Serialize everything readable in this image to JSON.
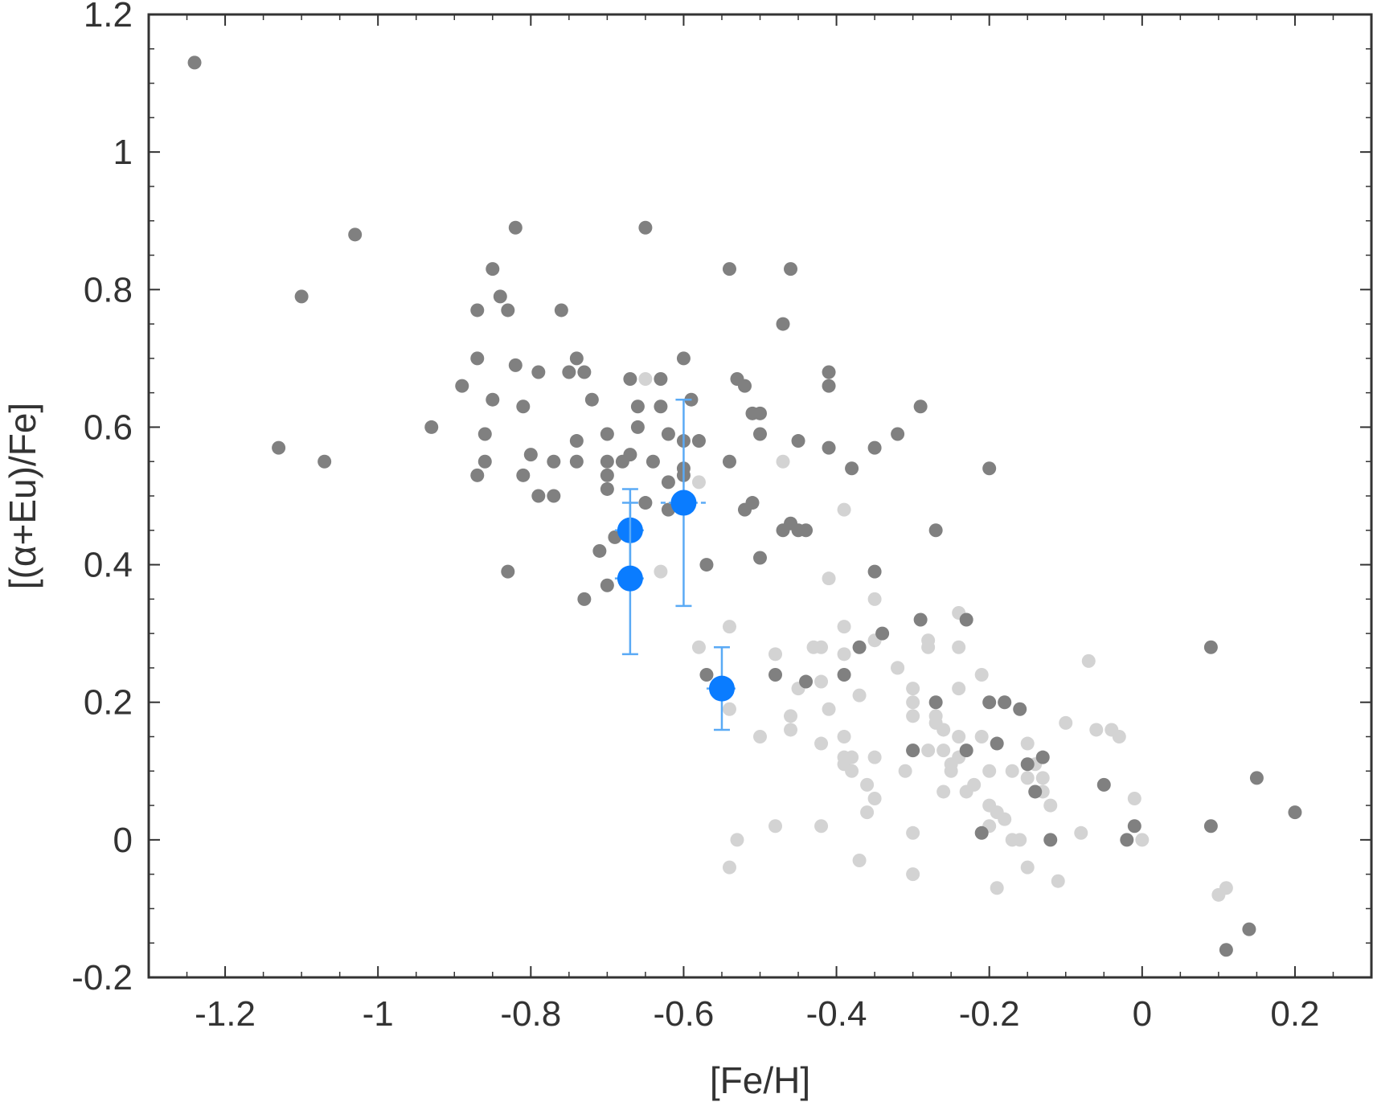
{
  "chart_data": {
    "type": "scatter",
    "title": "",
    "xlabel": "[Fe/H]",
    "ylabel": "[(α+Eu)/Fe]",
    "xlim": [
      -1.3,
      0.3
    ],
    "ylim": [
      -0.2,
      1.2
    ],
    "xticks": [
      -1.2,
      -1,
      -0.8,
      -0.6,
      -0.4,
      -0.2,
      0,
      0.2
    ],
    "xtick_labels": [
      "-1.2",
      "-1",
      "-0.8",
      "-0.6",
      "-0.4",
      "-0.2",
      "0",
      "0.2"
    ],
    "yticks": [
      -0.2,
      0,
      0.2,
      0.4,
      0.6,
      0.8,
      1,
      1.2
    ],
    "ytick_labels": [
      "-0.2",
      "0",
      "0.2",
      "0.4",
      "0.6",
      "0.8",
      "1",
      "1.2"
    ],
    "grid": false,
    "legend": "none",
    "colors": {
      "dark_points": "#808080",
      "light_points": "#d3d3d3",
      "highlight": "#0a7cff",
      "errorbar": "#5aaaf5",
      "axes": "#333333"
    },
    "series": [
      {
        "color_key": "light_points",
        "points": [
          [
            -0.65,
            0.67
          ],
          [
            -0.58,
            0.52
          ],
          [
            -0.47,
            0.55
          ],
          [
            -0.39,
            0.48
          ],
          [
            -0.41,
            0.38
          ],
          [
            -0.35,
            0.35
          ],
          [
            -0.63,
            0.39
          ],
          [
            -0.58,
            0.28
          ],
          [
            -0.54,
            0.31
          ],
          [
            -0.54,
            0.19
          ],
          [
            -0.5,
            0.15
          ],
          [
            -0.48,
            0.27
          ],
          [
            -0.46,
            0.18
          ],
          [
            -0.46,
            0.16
          ],
          [
            -0.45,
            0.22
          ],
          [
            -0.43,
            0.28
          ],
          [
            -0.42,
            0.28
          ],
          [
            -0.42,
            0.23
          ],
          [
            -0.42,
            0.14
          ],
          [
            -0.41,
            0.19
          ],
          [
            -0.39,
            0.31
          ],
          [
            -0.39,
            0.27
          ],
          [
            -0.39,
            0.15
          ],
          [
            -0.39,
            0.12
          ],
          [
            -0.39,
            0.11
          ],
          [
            -0.38,
            0.12
          ],
          [
            -0.38,
            0.1
          ],
          [
            -0.37,
            0.21
          ],
          [
            -0.36,
            0.08
          ],
          [
            -0.36,
            0.04
          ],
          [
            -0.35,
            0.29
          ],
          [
            -0.35,
            0.12
          ],
          [
            -0.35,
            0.06
          ],
          [
            -0.32,
            0.25
          ],
          [
            -0.31,
            0.1
          ],
          [
            -0.3,
            0.22
          ],
          [
            -0.3,
            0.2
          ],
          [
            -0.3,
            0.18
          ],
          [
            -0.3,
            0.13
          ],
          [
            -0.3,
            0.01
          ],
          [
            -0.28,
            0.28
          ],
          [
            -0.28,
            0.29
          ],
          [
            -0.27,
            0.18
          ],
          [
            -0.27,
            0.17
          ],
          [
            -0.26,
            0.16
          ],
          [
            -0.26,
            0.13
          ],
          [
            -0.26,
            0.07
          ],
          [
            -0.25,
            0.11
          ],
          [
            -0.25,
            0.1
          ],
          [
            -0.24,
            0.33
          ],
          [
            -0.24,
            0.28
          ],
          [
            -0.24,
            0.22
          ],
          [
            -0.24,
            0.15
          ],
          [
            -0.24,
            0.12
          ],
          [
            -0.23,
            0.07
          ],
          [
            -0.22,
            0.08
          ],
          [
            -0.21,
            0.24
          ],
          [
            -0.21,
            0.15
          ],
          [
            -0.2,
            0.1
          ],
          [
            -0.2,
            0.05
          ],
          [
            -0.2,
            0.02
          ],
          [
            -0.19,
            0.04
          ],
          [
            -0.18,
            0.03
          ],
          [
            -0.18,
            0.2
          ],
          [
            -0.17,
            0.1
          ],
          [
            -0.17,
            0.0
          ],
          [
            -0.16,
            0.0
          ],
          [
            -0.15,
            0.14
          ],
          [
            -0.15,
            0.09
          ],
          [
            -0.14,
            0.11
          ],
          [
            -0.13,
            0.09
          ],
          [
            -0.13,
            0.07
          ],
          [
            -0.12,
            0.05
          ],
          [
            -0.1,
            0.17
          ],
          [
            -0.08,
            0.01
          ],
          [
            -0.07,
            0.26
          ],
          [
            -0.06,
            0.16
          ],
          [
            -0.04,
            0.16
          ],
          [
            -0.03,
            0.15
          ],
          [
            -0.01,
            0.06
          ],
          [
            0,
            0.0
          ],
          [
            0.1,
            -0.08
          ],
          [
            0.11,
            -0.07
          ],
          [
            -0.54,
            -0.04
          ],
          [
            -0.53,
            0.0
          ],
          [
            -0.48,
            0.02
          ],
          [
            -0.42,
            0.02
          ],
          [
            -0.37,
            -0.03
          ],
          [
            -0.3,
            -0.05
          ],
          [
            -0.19,
            -0.07
          ],
          [
            -0.15,
            -0.04
          ],
          [
            -0.11,
            -0.06
          ],
          [
            -0.32,
            0.25
          ],
          [
            -0.28,
            0.13
          ]
        ]
      },
      {
        "color_key": "dark_points",
        "points": [
          [
            -1.24,
            1.13
          ],
          [
            -1.13,
            0.57
          ],
          [
            -1.1,
            0.79
          ],
          [
            -1.07,
            0.55
          ],
          [
            -1.03,
            0.88
          ],
          [
            -0.93,
            0.6
          ],
          [
            -0.89,
            0.66
          ],
          [
            -0.87,
            0.77
          ],
          [
            -0.87,
            0.7
          ],
          [
            -0.87,
            0.53
          ],
          [
            -0.86,
            0.59
          ],
          [
            -0.86,
            0.55
          ],
          [
            -0.85,
            0.83
          ],
          [
            -0.85,
            0.64
          ],
          [
            -0.84,
            0.79
          ],
          [
            -0.83,
            0.77
          ],
          [
            -0.83,
            0.39
          ],
          [
            -0.82,
            0.89
          ],
          [
            -0.82,
            0.69
          ],
          [
            -0.81,
            0.63
          ],
          [
            -0.81,
            0.53
          ],
          [
            -0.8,
            0.56
          ],
          [
            -0.79,
            0.68
          ],
          [
            -0.79,
            0.5
          ],
          [
            -0.77,
            0.55
          ],
          [
            -0.77,
            0.5
          ],
          [
            -0.76,
            0.77
          ],
          [
            -0.75,
            0.68
          ],
          [
            -0.74,
            0.7
          ],
          [
            -0.74,
            0.58
          ],
          [
            -0.74,
            0.55
          ],
          [
            -0.73,
            0.68
          ],
          [
            -0.73,
            0.35
          ],
          [
            -0.72,
            0.64
          ],
          [
            -0.71,
            0.42
          ],
          [
            -0.7,
            0.59
          ],
          [
            -0.7,
            0.55
          ],
          [
            -0.7,
            0.53
          ],
          [
            -0.7,
            0.51
          ],
          [
            -0.7,
            0.37
          ],
          [
            -0.69,
            0.44
          ],
          [
            -0.68,
            0.55
          ],
          [
            -0.67,
            0.67
          ],
          [
            -0.67,
            0.56
          ],
          [
            -0.66,
            0.63
          ],
          [
            -0.66,
            0.6
          ],
          [
            -0.65,
            0.89
          ],
          [
            -0.65,
            0.49
          ],
          [
            -0.64,
            0.55
          ],
          [
            -0.63,
            0.67
          ],
          [
            -0.63,
            0.63
          ],
          [
            -0.62,
            0.59
          ],
          [
            -0.62,
            0.52
          ],
          [
            -0.62,
            0.48
          ],
          [
            -0.6,
            0.7
          ],
          [
            -0.6,
            0.58
          ],
          [
            -0.6,
            0.54
          ],
          [
            -0.6,
            0.53
          ],
          [
            -0.59,
            0.64
          ],
          [
            -0.58,
            0.58
          ],
          [
            -0.57,
            0.4
          ],
          [
            -0.54,
            0.83
          ],
          [
            -0.54,
            0.55
          ],
          [
            -0.53,
            0.67
          ],
          [
            -0.52,
            0.48
          ],
          [
            -0.52,
            0.66
          ],
          [
            -0.51,
            0.62
          ],
          [
            -0.51,
            0.49
          ],
          [
            -0.5,
            0.62
          ],
          [
            -0.5,
            0.59
          ],
          [
            -0.5,
            0.41
          ],
          [
            -0.47,
            0.75
          ],
          [
            -0.47,
            0.45
          ],
          [
            -0.46,
            0.83
          ],
          [
            -0.46,
            0.46
          ],
          [
            -0.45,
            0.58
          ],
          [
            -0.45,
            0.45
          ],
          [
            -0.44,
            0.45
          ],
          [
            -0.41,
            0.68
          ],
          [
            -0.41,
            0.66
          ],
          [
            -0.41,
            0.57
          ],
          [
            -0.38,
            0.54
          ],
          [
            -0.37,
            0.28
          ],
          [
            -0.35,
            0.57
          ],
          [
            -0.35,
            0.39
          ],
          [
            -0.34,
            0.3
          ],
          [
            -0.32,
            0.59
          ],
          [
            -0.29,
            0.63
          ],
          [
            -0.29,
            0.32
          ],
          [
            -0.27,
            0.45
          ],
          [
            -0.27,
            0.2
          ],
          [
            -0.23,
            0.32
          ],
          [
            -0.23,
            0.13
          ],
          [
            -0.2,
            0.54
          ],
          [
            -0.2,
            0.2
          ],
          [
            -0.19,
            0.14
          ],
          [
            -0.18,
            0.2
          ],
          [
            -0.16,
            0.19
          ],
          [
            -0.15,
            0.11
          ],
          [
            -0.14,
            0.07
          ],
          [
            -0.13,
            0.12
          ],
          [
            -0.12,
            0.0
          ],
          [
            -0.05,
            0.08
          ],
          [
            -0.02,
            0.0
          ],
          [
            -0.01,
            0.02
          ],
          [
            0.09,
            0.28
          ],
          [
            0.09,
            0.02
          ],
          [
            0.11,
            -0.16
          ],
          [
            0.14,
            -0.13
          ],
          [
            0.15,
            0.09
          ],
          [
            0.2,
            0.04
          ],
          [
            -0.57,
            0.24
          ],
          [
            -0.48,
            0.24
          ],
          [
            -0.44,
            0.23
          ],
          [
            -0.39,
            0.24
          ],
          [
            -0.3,
            0.13
          ],
          [
            -0.21,
            0.01
          ]
        ]
      },
      {
        "color_key": "highlight",
        "points": [
          [
            -0.67,
            0.45
          ],
          [
            -0.67,
            0.38
          ],
          [
            -0.6,
            0.49
          ],
          [
            -0.55,
            0.22
          ]
        ],
        "yerr": [
          [
            0.06,
            0.06
          ],
          [
            0.11,
            0.11
          ],
          [
            0.15,
            0.15
          ],
          [
            0.06,
            0.06
          ]
        ],
        "xerr": [
          0.02,
          0.02,
          0.03,
          0.02
        ]
      }
    ]
  }
}
